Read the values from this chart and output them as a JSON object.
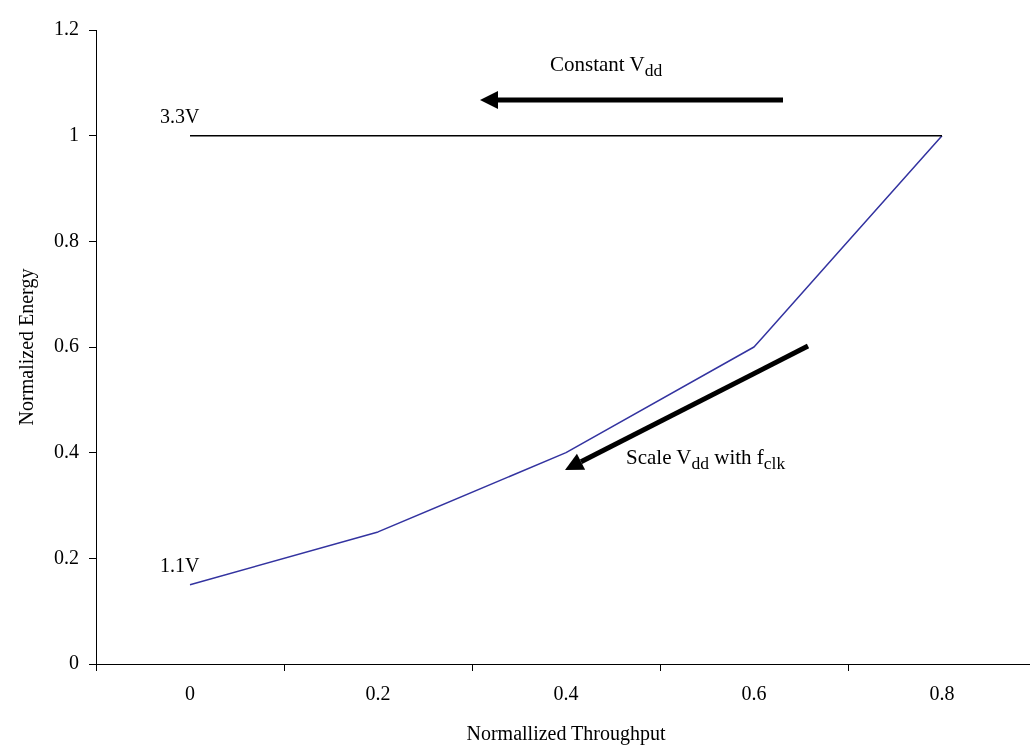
{
  "chart_data": {
    "type": "line",
    "xlabel": "Normallized Throughput",
    "ylabel": "Normalized Energy",
    "categories": [
      "0",
      "0.2",
      "0.4",
      "0.6",
      "0.8"
    ],
    "series": [
      {
        "color": "#000000",
        "values": [
          1,
          1,
          1,
          1,
          1
        ]
      },
      {
        "color": "#3333a0",
        "values": [
          0.15,
          0.25,
          0.4,
          0.6,
          1
        ]
      }
    ],
    "ylim": [
      0,
      1.2
    ],
    "yticks": [
      0,
      0.2,
      0.4,
      0.6,
      0.8,
      1,
      1.2
    ],
    "grid": false,
    "legend": false,
    "marker": "none",
    "line_style": "solid",
    "annotations": [
      {
        "text": "3.3V",
        "x": "0",
        "y": 1
      },
      {
        "text": "1.1V",
        "x": "0",
        "y": 0.15
      },
      "Constant V$_{dd}$",
      "Scale V$_{dd}$ with f$_{clk}$"
    ]
  }
}
